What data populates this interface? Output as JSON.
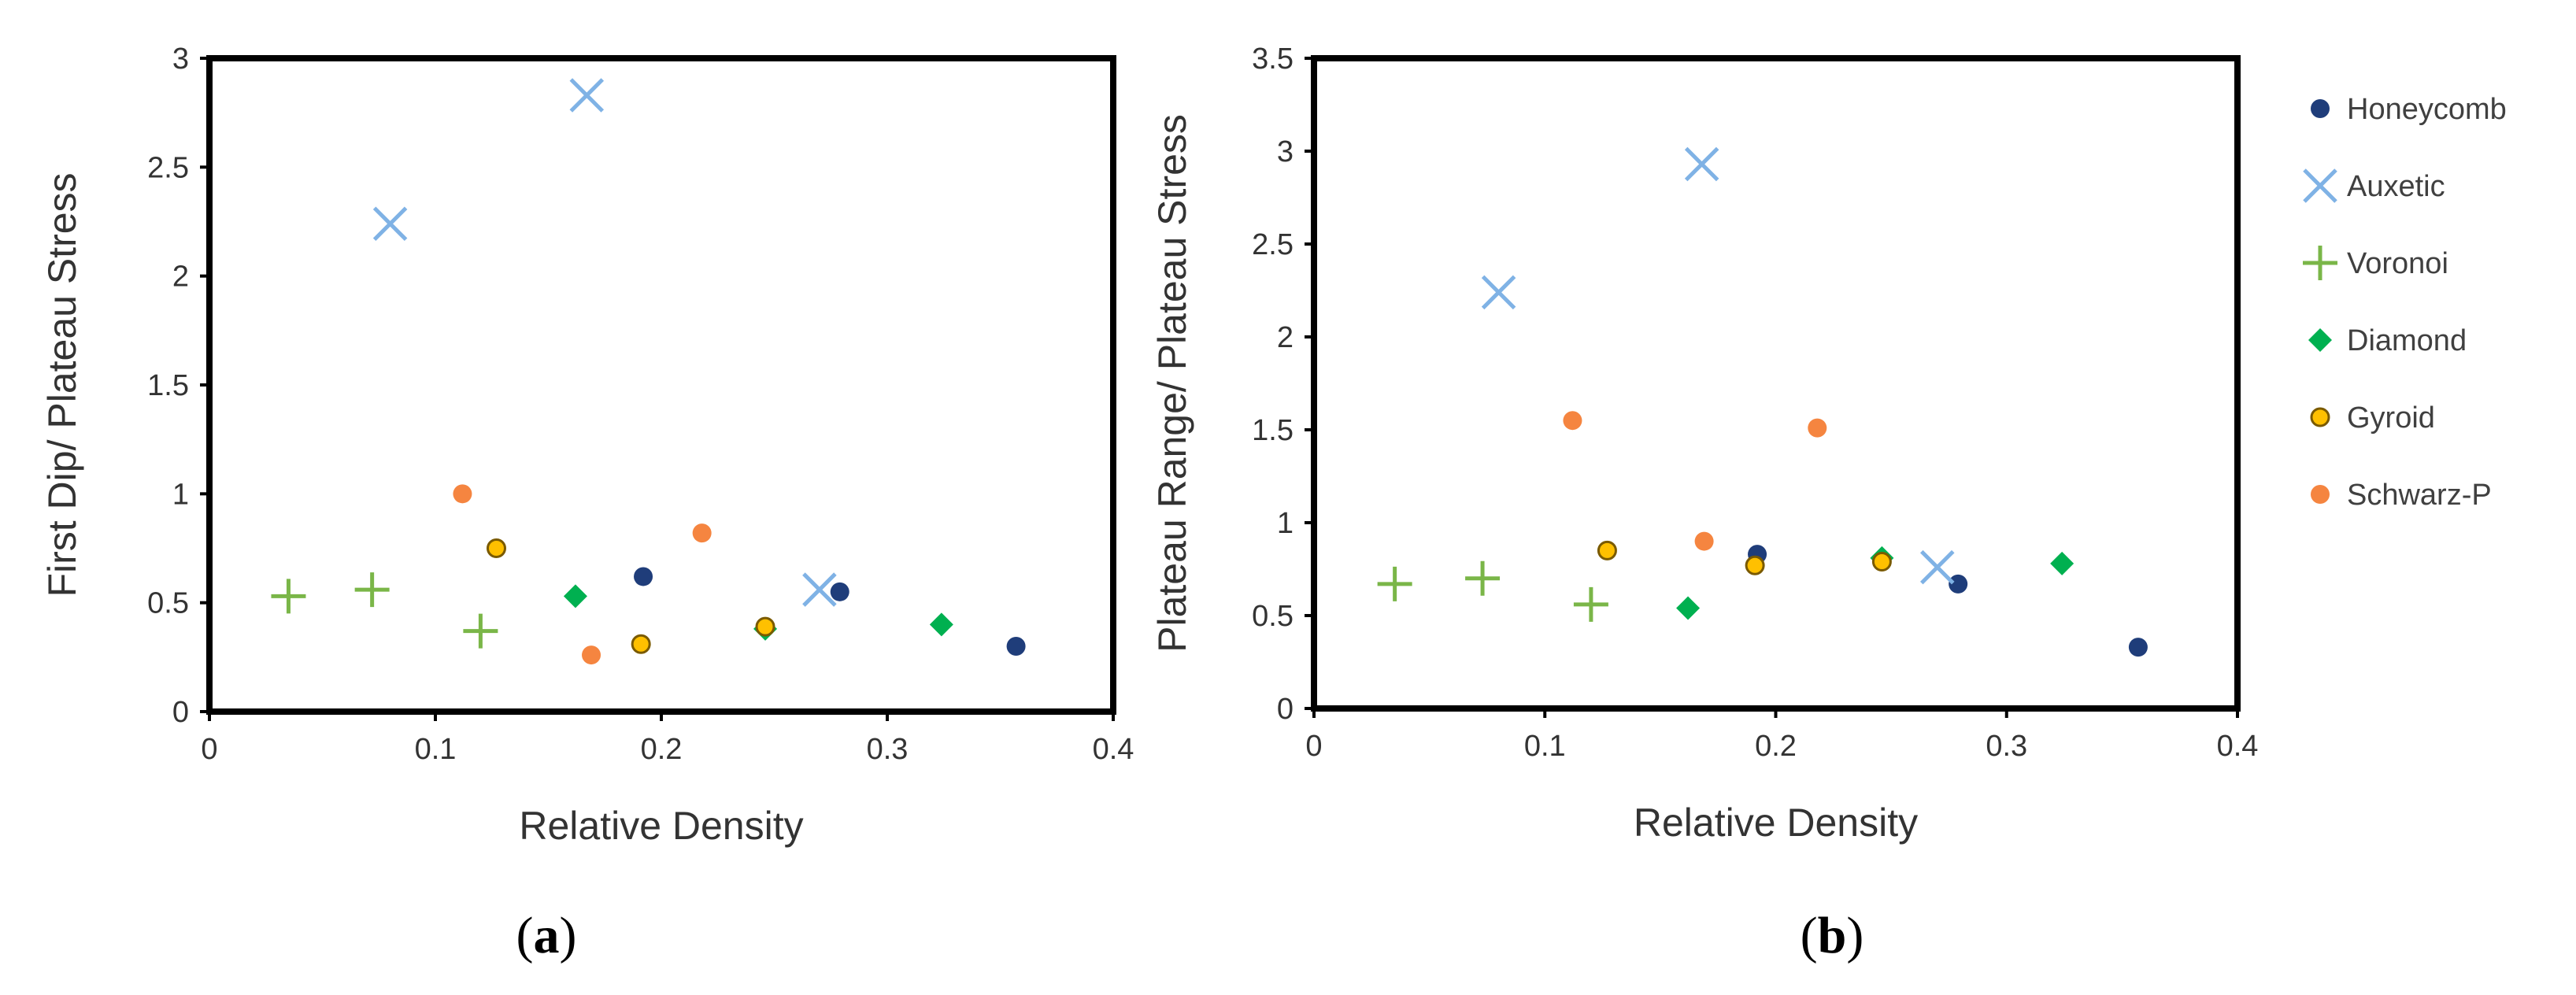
{
  "legend": [
    {
      "name": "Honeycomb",
      "marker": "circle",
      "color": "#1f3d7a"
    },
    {
      "name": "Auxetic",
      "marker": "x",
      "color": "#7fb2e5"
    },
    {
      "name": "Voronoi",
      "marker": "plus",
      "color": "#7ab648"
    },
    {
      "name": "Diamond",
      "marker": "diamond",
      "color": "#00b050"
    },
    {
      "name": "Gyroid",
      "marker": "circle-outlined",
      "color": "#ffc000"
    },
    {
      "name": "Schwarz-P",
      "marker": "circle",
      "color": "#f58540"
    }
  ],
  "chart_data": [
    {
      "type": "scatter",
      "panel_label": "a",
      "xlabel": "Relative Density",
      "ylabel": "First Dip/ Plateau Stress",
      "xlim": [
        0,
        0.4
      ],
      "ylim": [
        0,
        3
      ],
      "xticks": [
        "0",
        "0.1",
        "0.2",
        "0.3",
        "0.4"
      ],
      "yticks": [
        "0",
        "0.5",
        "1",
        "1.5",
        "2",
        "2.5",
        "3"
      ],
      "series": [
        {
          "name": "Honeycomb",
          "points": [
            [
              0.192,
              0.62
            ],
            [
              0.279,
              0.55
            ],
            [
              0.357,
              0.3
            ]
          ]
        },
        {
          "name": "Auxetic",
          "points": [
            [
              0.08,
              2.24
            ],
            [
              0.167,
              2.83
            ],
            [
              0.27,
              0.56
            ]
          ]
        },
        {
          "name": "Voronoi",
          "points": [
            [
              0.035,
              0.53
            ],
            [
              0.072,
              0.56
            ],
            [
              0.12,
              0.37
            ]
          ]
        },
        {
          "name": "Diamond",
          "points": [
            [
              0.162,
              0.53
            ],
            [
              0.246,
              0.38
            ],
            [
              0.324,
              0.4
            ]
          ]
        },
        {
          "name": "Gyroid",
          "points": [
            [
              0.127,
              0.75
            ],
            [
              0.191,
              0.31
            ],
            [
              0.246,
              0.39
            ]
          ]
        },
        {
          "name": "Schwarz-P",
          "points": [
            [
              0.112,
              1.0
            ],
            [
              0.169,
              0.26
            ],
            [
              0.218,
              0.82
            ]
          ]
        }
      ]
    },
    {
      "type": "scatter",
      "panel_label": "b",
      "xlabel": "Relative Density",
      "ylabel": "Plateau Range/ Plateau Stress",
      "xlim": [
        0,
        0.4
      ],
      "ylim": [
        0,
        3.5
      ],
      "xticks": [
        "0",
        "0.1",
        "0.2",
        "0.3",
        "0.4"
      ],
      "yticks": [
        "0",
        "0.5",
        "1",
        "1.5",
        "2",
        "2.5",
        "3",
        "3.5"
      ],
      "series": [
        {
          "name": "Honeycomb",
          "points": [
            [
              0.192,
              0.83
            ],
            [
              0.279,
              0.67
            ],
            [
              0.357,
              0.33
            ]
          ]
        },
        {
          "name": "Auxetic",
          "points": [
            [
              0.08,
              2.24
            ],
            [
              0.168,
              2.93
            ],
            [
              0.27,
              0.76
            ]
          ]
        },
        {
          "name": "Voronoi",
          "points": [
            [
              0.035,
              0.67
            ],
            [
              0.073,
              0.7
            ],
            [
              0.12,
              0.56
            ]
          ]
        },
        {
          "name": "Diamond",
          "points": [
            [
              0.162,
              0.54
            ],
            [
              0.246,
              0.81
            ],
            [
              0.324,
              0.78
            ]
          ]
        },
        {
          "name": "Gyroid",
          "points": [
            [
              0.127,
              0.85
            ],
            [
              0.191,
              0.77
            ],
            [
              0.246,
              0.79
            ]
          ]
        },
        {
          "name": "Schwarz-P",
          "points": [
            [
              0.112,
              1.55
            ],
            [
              0.169,
              0.9
            ],
            [
              0.218,
              1.51
            ]
          ]
        }
      ]
    }
  ]
}
